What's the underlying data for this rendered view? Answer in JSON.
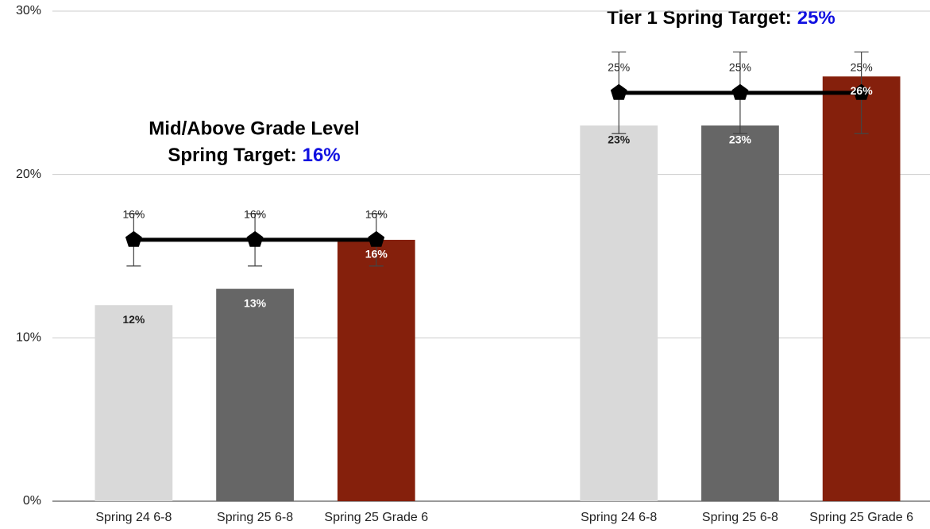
{
  "chart_data": {
    "type": "bar",
    "categories": [
      "Spring 24 6-8",
      "Spring 25 6-8",
      "Spring 25 Grade 6",
      null,
      "Spring 24 6-8",
      "Spring 25 6-8",
      "Spring 25 Grade 6"
    ],
    "values": [
      12,
      13,
      16,
      null,
      23,
      23,
      26
    ],
    "value_labels": [
      "12%",
      "13%",
      "16%",
      null,
      "23%",
      "23%",
      "26%"
    ],
    "colors": [
      "#d9d9d9",
      "#666666",
      "#85200c",
      null,
      "#d9d9d9",
      "#666666",
      "#85200c"
    ],
    "label_colors": [
      "#222222",
      "#ffffff",
      "#ffffff",
      null,
      "#222222",
      "#ffffff",
      "#ffffff"
    ],
    "target": {
      "values": [
        16,
        16,
        16,
        null,
        25,
        25,
        25
      ],
      "value_labels": [
        "16%",
        "16%",
        "16%",
        null,
        "25%",
        "25%",
        "25%"
      ],
      "errors": [
        1.6,
        1.6,
        1.6,
        null,
        2.5,
        2.5,
        2.5
      ],
      "color": "#000000"
    },
    "ylim": [
      0,
      30
    ],
    "yticks": [
      {
        "value": 0,
        "label": "0%"
      },
      {
        "value": 10,
        "label": "10%"
      },
      {
        "value": 20,
        "label": "20%"
      },
      {
        "value": 30,
        "label": "30%"
      }
    ],
    "grid": true,
    "annotations": [
      "Mid/Above Grade Level",
      "Spring Target:",
      "16%",
      "Tier 1 Spring Target:",
      "25%"
    ],
    "annotation_highlight_color": "#1010e0"
  }
}
